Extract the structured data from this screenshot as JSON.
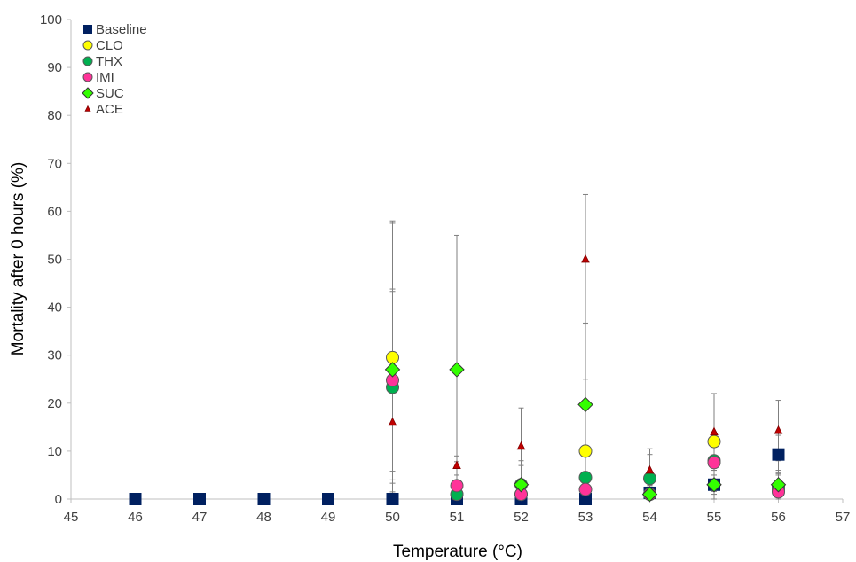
{
  "chart_data": {
    "type": "scatter",
    "xlabel": "Temperature (°C)",
    "ylabel": "Mortality after 0 hours (%)",
    "xlim": [
      45,
      57
    ],
    "ylim": [
      0,
      100
    ],
    "xticks": [
      "45",
      "46",
      "47",
      "48",
      "49",
      "50",
      "51",
      "52",
      "53",
      "54",
      "55",
      "56",
      "57"
    ],
    "yticks": [
      "0",
      "10",
      "20",
      "30",
      "40",
      "50",
      "60",
      "70",
      "80",
      "90",
      "100"
    ],
    "grid": false,
    "legend_position": "top-left",
    "series": [
      {
        "name": "Baseline",
        "marker": "square",
        "color": "#002060",
        "points": [
          {
            "x": 46,
            "y": 0
          },
          {
            "x": 47,
            "y": 0
          },
          {
            "x": 48,
            "y": 0
          },
          {
            "x": 49,
            "y": 0
          },
          {
            "x": 50,
            "y": 0
          },
          {
            "x": 51,
            "y": 0
          },
          {
            "x": 52,
            "y": 0
          },
          {
            "x": 53,
            "y": 0
          },
          {
            "x": 54,
            "y": 1.3,
            "err": 1.5
          },
          {
            "x": 55,
            "y": 3,
            "err": 2
          },
          {
            "x": 56,
            "y": 9.3,
            "err": 4
          }
        ]
      },
      {
        "name": "CLO",
        "marker": "circle",
        "color": "#FFFF00",
        "points": [
          {
            "x": 50,
            "y": 29.5,
            "err": 28
          },
          {
            "x": 51,
            "y": 1,
            "err": 2
          },
          {
            "x": 52,
            "y": 1,
            "err": 2
          },
          {
            "x": 53,
            "y": 10,
            "err": 15
          },
          {
            "x": 54,
            "y": 1,
            "err": 2
          },
          {
            "x": 55,
            "y": 12,
            "err": 10
          },
          {
            "x": 56,
            "y": 2,
            "err": 3
          }
        ]
      },
      {
        "name": "THX",
        "marker": "circle",
        "color": "#00B050",
        "points": [
          {
            "x": 50,
            "y": 23.3,
            "err": 20
          },
          {
            "x": 51,
            "y": 1,
            "err": 2
          },
          {
            "x": 52,
            "y": 3,
            "err": 5
          },
          {
            "x": 53,
            "y": 4.5,
            "err": 5
          },
          {
            "x": 54,
            "y": 4.3,
            "err": 5
          },
          {
            "x": 55,
            "y": 8,
            "err": 6
          },
          {
            "x": 56,
            "y": 2.5,
            "err": 3
          }
        ]
      },
      {
        "name": "IMI",
        "marker": "circle",
        "color": "#FF3399",
        "points": [
          {
            "x": 50,
            "y": 24.8,
            "err": 19
          },
          {
            "x": 51,
            "y": 2.8,
            "err": 5
          },
          {
            "x": 52,
            "y": 1,
            "err": 2
          },
          {
            "x": 53,
            "y": 2,
            "err": 3
          },
          {
            "x": 54,
            "y": 1,
            "err": 2
          },
          {
            "x": 55,
            "y": 7.6,
            "err": 6
          },
          {
            "x": 56,
            "y": 1.5,
            "err": 2
          }
        ]
      },
      {
        "name": "SUC",
        "marker": "diamond",
        "color": "#33FF00",
        "points": [
          {
            "x": 50,
            "y": 27,
            "err": 31
          },
          {
            "x": 51,
            "y": 27,
            "err": 28
          },
          {
            "x": 52,
            "y": 3,
            "err": 4
          },
          {
            "x": 53,
            "y": 19.7,
            "err": 17
          },
          {
            "x": 54,
            "y": 1,
            "err": 2
          },
          {
            "x": 55,
            "y": 3,
            "err": 3
          },
          {
            "x": 56,
            "y": 3,
            "err": 3
          }
        ]
      },
      {
        "name": "ACE",
        "marker": "triangle",
        "color": "#C00000",
        "points": [
          {
            "x": 50,
            "y": 16,
            "err": 12
          },
          {
            "x": 51,
            "y": 7,
            "err": 2
          },
          {
            "x": 52,
            "y": 11,
            "err": 8
          },
          {
            "x": 53,
            "y": 50,
            "err": 13.5
          },
          {
            "x": 54,
            "y": 6,
            "err": 4.5
          },
          {
            "x": 55,
            "y": 14,
            "err": 8
          },
          {
            "x": 56,
            "y": 14.3,
            "err": 6.3
          }
        ]
      }
    ]
  }
}
